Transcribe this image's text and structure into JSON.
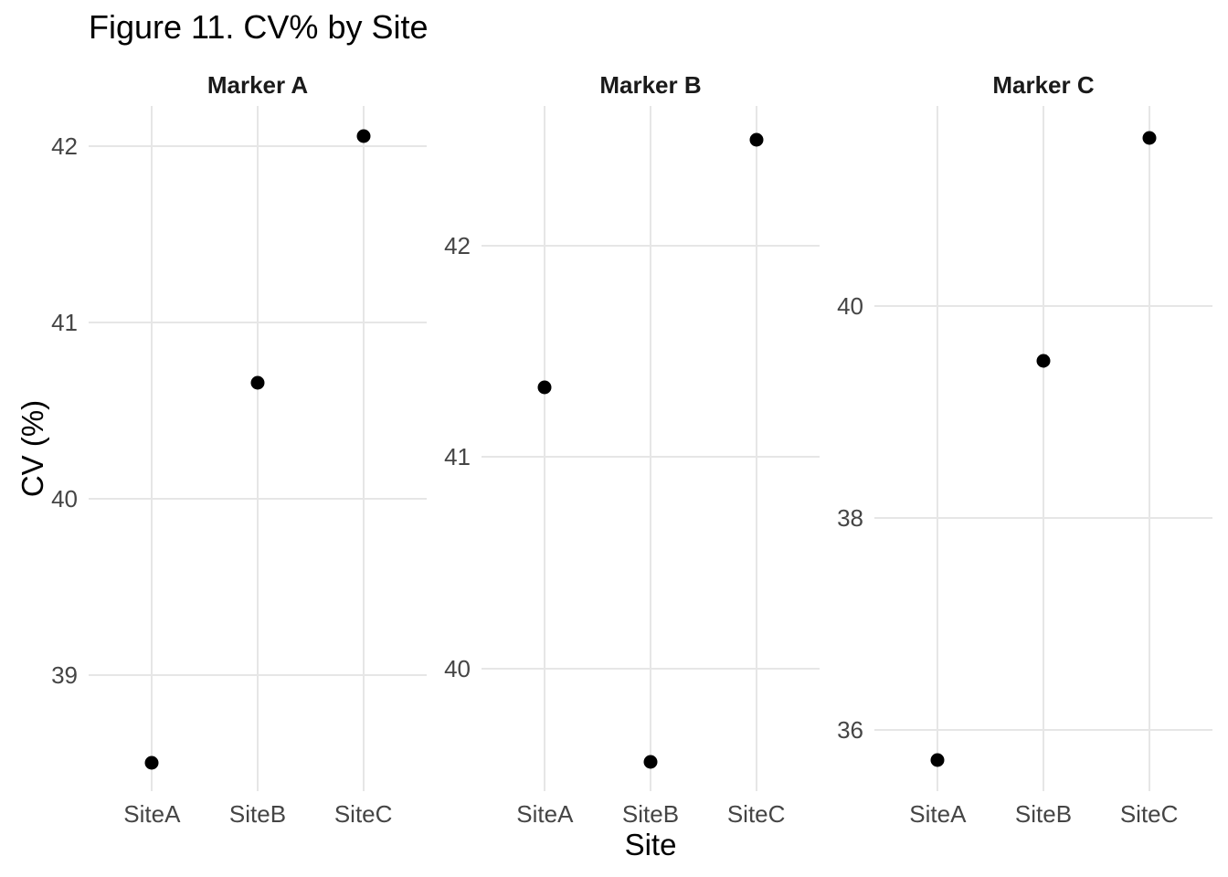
{
  "chart_data": {
    "type": "scatter",
    "title": "Figure 11. CV% by Site",
    "xlabel": "Site",
    "ylabel": "CV (%)",
    "categories": [
      "SiteA",
      "SiteB",
      "SiteC"
    ],
    "grid": "major-only",
    "legend": "none",
    "facets": [
      {
        "title": "Marker A",
        "ylim": [
          38.34,
          42.23
        ],
        "ybreaks": [
          39,
          40,
          41,
          42
        ],
        "values": [
          38.5,
          40.66,
          42.06
        ]
      },
      {
        "title": "Marker B",
        "ylim": [
          39.42,
          42.66
        ],
        "ybreaks": [
          40,
          41,
          42
        ],
        "values": [
          41.33,
          39.56,
          42.5
        ]
      },
      {
        "title": "Marker C",
        "ylim": [
          35.42,
          41.89
        ],
        "ybreaks": [
          36,
          38,
          40
        ],
        "values": [
          35.71,
          39.48,
          41.59
        ]
      }
    ],
    "colors": {
      "background": "#ffffff",
      "gridline": "#e6e6e6",
      "point": "#000000",
      "tick_label": "#454545",
      "strip_label": "#1a1a1a",
      "title": "#000000",
      "axis_title": "#000000"
    }
  }
}
